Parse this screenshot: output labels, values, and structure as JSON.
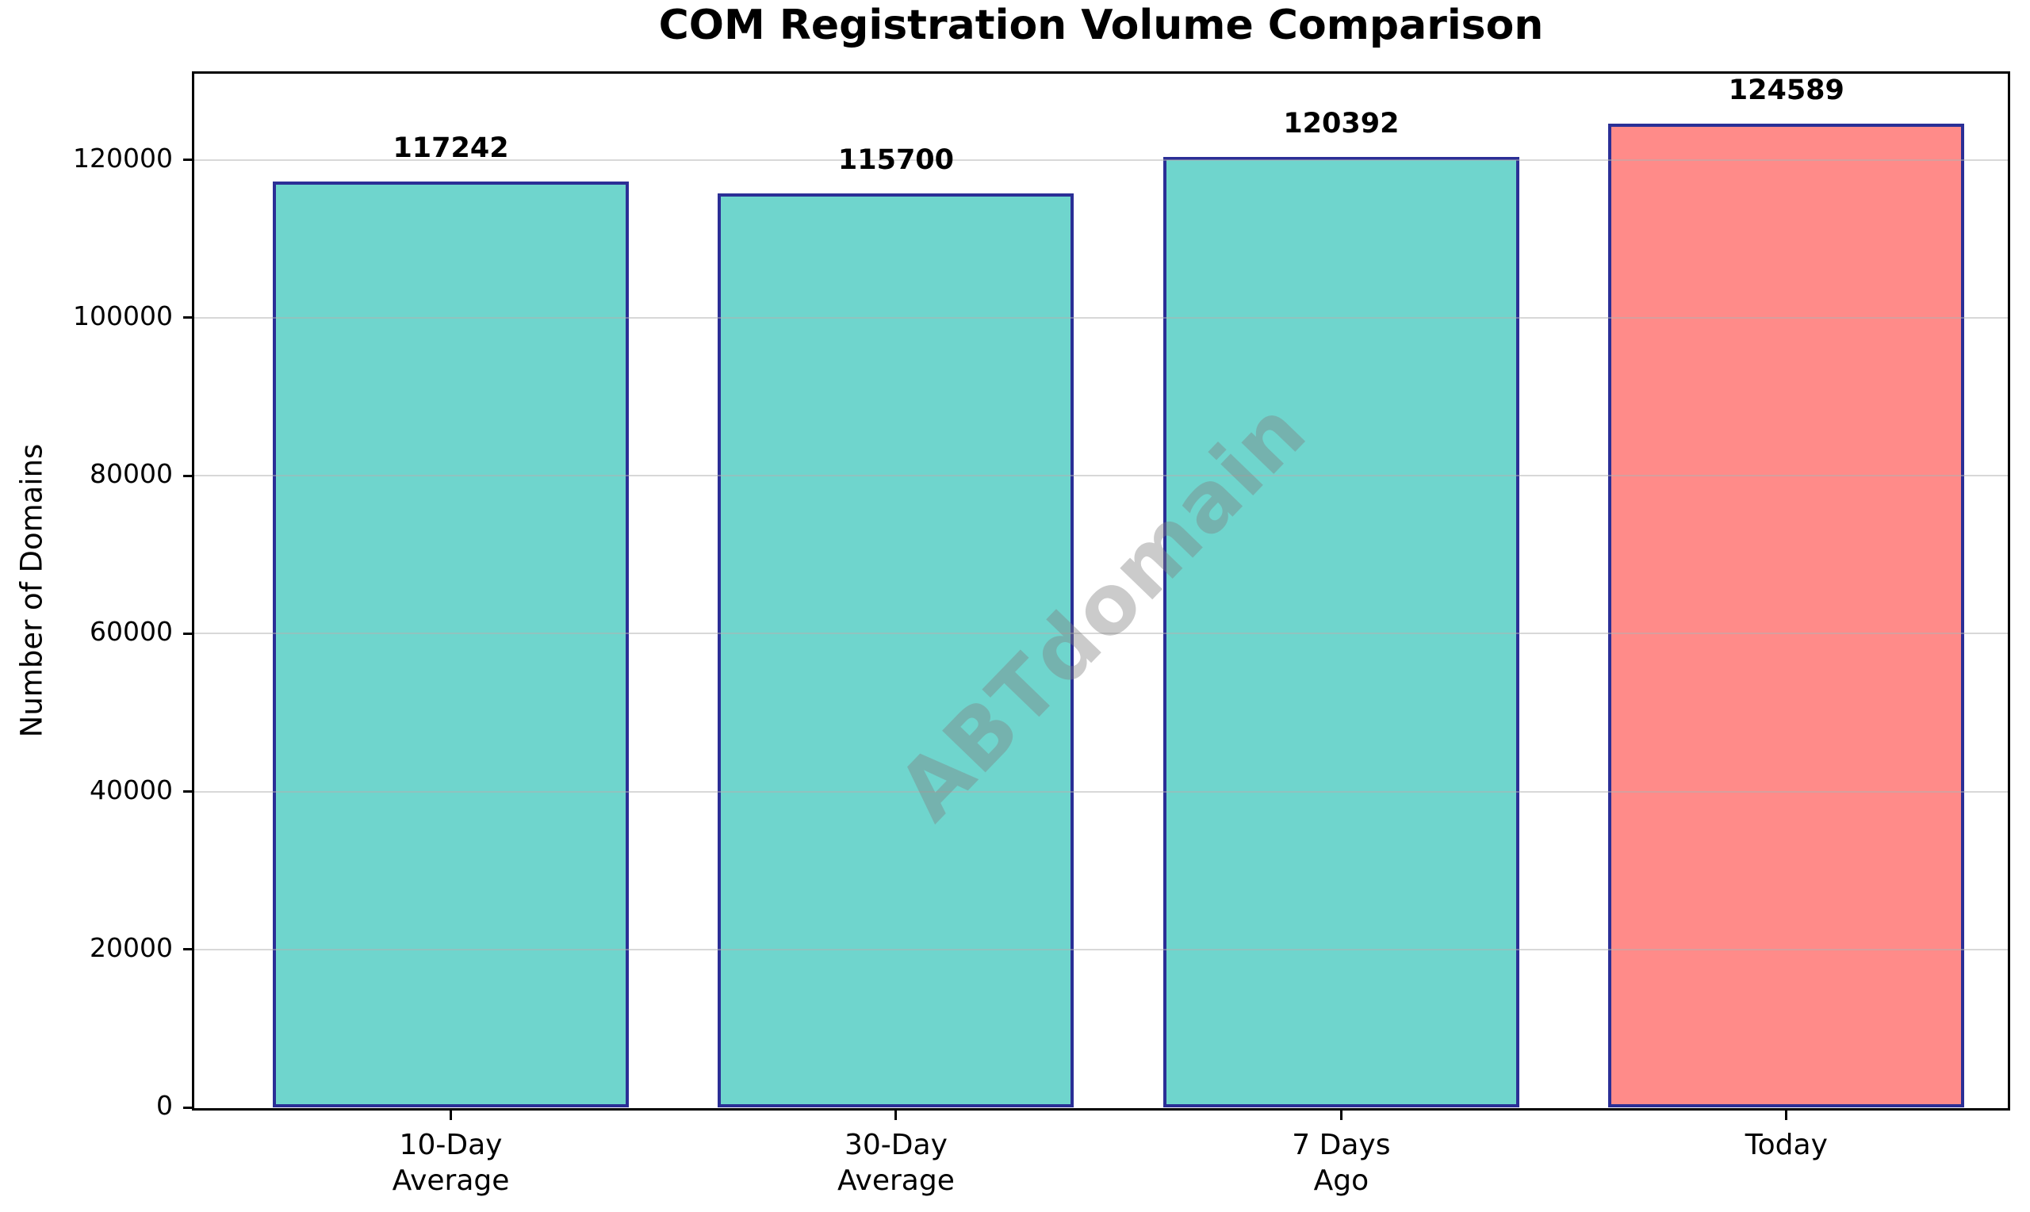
{
  "chart_data": {
    "type": "bar",
    "title": "COM Registration Volume Comparison",
    "xlabel": "",
    "ylabel": "Number of Domains",
    "categories": [
      "10-Day\nAverage",
      "30-Day\nAverage",
      "7 Days\nAgo",
      "Today"
    ],
    "values": [
      117242,
      115700,
      120392,
      124589
    ],
    "bar_labels": [
      "117242",
      "115700",
      "120392",
      "124589"
    ],
    "bar_colors": [
      "#6FD5CD",
      "#6FD5CD",
      "#6FD5CD",
      "#FF8B89"
    ],
    "bar_edge_color": "#2B2F96",
    "yticks": [
      0,
      20000,
      40000,
      60000,
      80000,
      100000,
      120000
    ],
    "ylim": [
      0,
      131000
    ],
    "grid": true,
    "grid_color": "#B1B1B1",
    "legend": null,
    "watermark": "ABTdomain"
  }
}
